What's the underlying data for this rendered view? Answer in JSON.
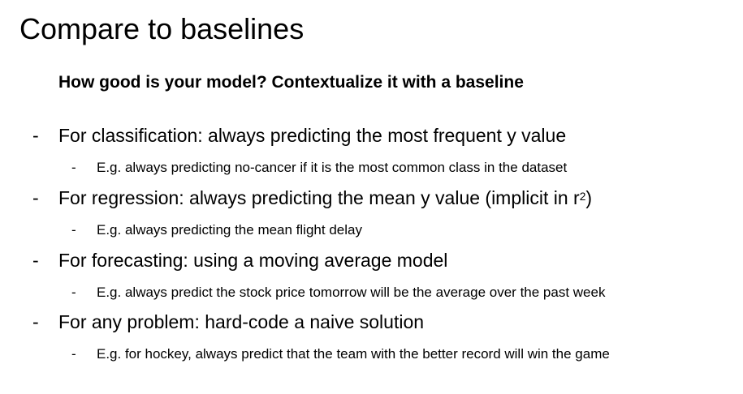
{
  "slide": {
    "title": "Compare to baselines",
    "subtitle": "How good is your model? Contextualize it with a baseline",
    "dash": "-",
    "items": [
      {
        "text": "For classification: always predicting the most frequent y value",
        "sub": "E.g. always predicting no-cancer if it is the most common class in the dataset"
      },
      {
        "text": "For regression: always predicting the mean y value (implicit in r",
        "text_sup": "2",
        "text_end": ")",
        "sub": "E.g. always predicting the mean flight delay"
      },
      {
        "text": "For forecasting: using a moving average model",
        "sub": "E.g. always predict the stock price tomorrow will be the average over the past week"
      },
      {
        "text": "For any problem: hard-code a naive solution",
        "sub": "E.g. for hockey, always predict that the team with the better record will win the game"
      }
    ]
  }
}
